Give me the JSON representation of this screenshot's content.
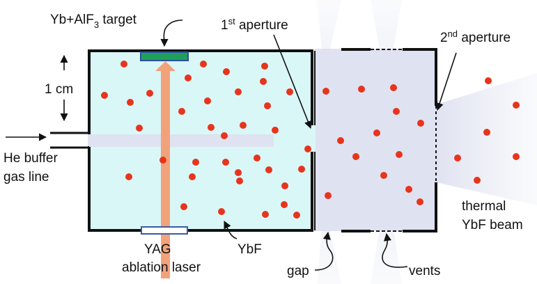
{
  "labels": {
    "target_main": "Yb+AlF",
    "target_sub": "3",
    "target_end": " target",
    "one_cm": "1 cm",
    "he_line_1": "He buffer",
    "he_line_2": "gas line",
    "aperture1_num": "1",
    "aperture1_sup": "st",
    "aperture1_text": " aperture",
    "aperture2_num": "2",
    "aperture2_sup": "nd",
    "aperture2_text": " aperture",
    "yag_1": "YAG",
    "yag_2": "ablation laser",
    "ybf": "YbF",
    "gap": "gap",
    "vents": "vents",
    "beam_1": "thermal",
    "beam_2": "YbF beam"
  },
  "colors": {
    "cell_fill": "#d9f7f7",
    "cell_stroke": "#111111",
    "gas_region": "#dfe2f0",
    "flow_shade": "#dfe2f0",
    "molecule": "#e8341c",
    "target_fill": "#1fa05a",
    "target_stroke": "#2c4f9e",
    "laser": "#f2a27a",
    "window_stroke": "#3a5aa8"
  },
  "icons": {
    "molecule": "red-dot-icon",
    "arrow": "arrowhead-icon"
  }
}
